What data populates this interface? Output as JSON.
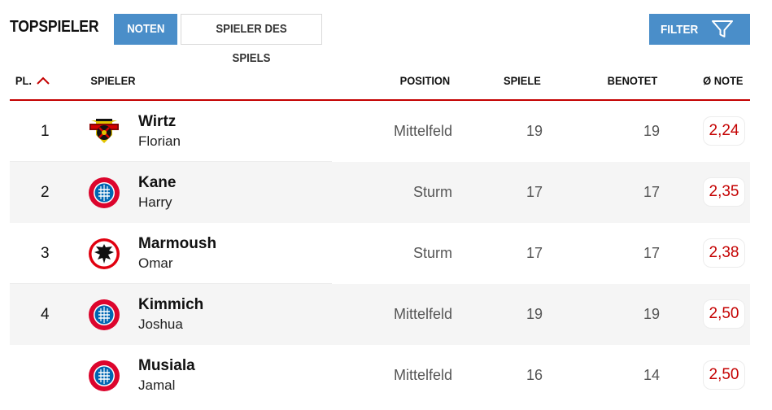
{
  "header": {
    "title": "TOPSPIELER",
    "tabs": [
      {
        "label": "NOTEN",
        "active": true
      },
      {
        "label": "SPIELER DES SPIELS",
        "active": false
      }
    ],
    "filter_label": "FILTER"
  },
  "table": {
    "columns": {
      "rank": "PL.",
      "player": "SPIELER",
      "position": "POSITION",
      "games": "SPIELE",
      "rated": "BENOTET",
      "note": "Ø NOTE"
    },
    "sort_icon": "chevron-up-icon",
    "rows": [
      {
        "rank": "1",
        "crest": "leverkusen-crest-icon",
        "last": "Wirtz",
        "first": "Florian",
        "position": "Mittelfeld",
        "games": "19",
        "rated": "19",
        "note": "2,24"
      },
      {
        "rank": "2",
        "crest": "bayern-crest-icon",
        "last": "Kane",
        "first": "Harry",
        "position": "Sturm",
        "games": "17",
        "rated": "17",
        "note": "2,35"
      },
      {
        "rank": "3",
        "crest": "frankfurt-crest-icon",
        "last": "Marmoush",
        "first": "Omar",
        "position": "Sturm",
        "games": "17",
        "rated": "17",
        "note": "2,38"
      },
      {
        "rank": "4",
        "crest": "bayern-crest-icon",
        "last": "Kimmich",
        "first": "Joshua",
        "position": "Mittelfeld",
        "games": "19",
        "rated": "19",
        "note": "2,50"
      },
      {
        "rank": "",
        "crest": "bayern-crest-icon",
        "last": "Musiala",
        "first": "Jamal",
        "position": "Mittelfeld",
        "games": "16",
        "rated": "14",
        "note": "2,50"
      }
    ]
  },
  "colors": {
    "accent_blue": "#4a8ec9",
    "note_red": "#c40000",
    "row_alt": "#f5f5f5"
  }
}
